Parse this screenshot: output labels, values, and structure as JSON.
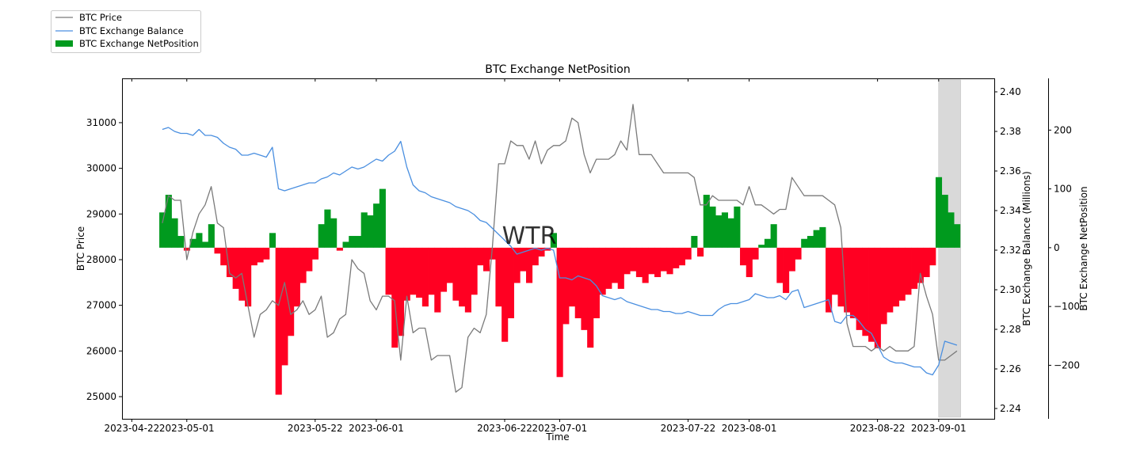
{
  "chart_data": {
    "type": "line",
    "title": "BTC Exchange NetPosition",
    "xlabel": "Time",
    "ylabel_left": "BTC Price",
    "ylabel_right": "BTC Exchange Balance (Millions)",
    "ylabel_right2": "BTC Exchange NetPosition",
    "start_date": "2023-04-27",
    "interval": "1 day",
    "x_range": [
      "2023-04-20",
      "2023-09-10"
    ],
    "x_ticks": [
      "2023-04-22",
      "2023-05-01",
      "2023-05-22",
      "2023-06-01",
      "2023-06-22",
      "2023-07-01",
      "2023-07-22",
      "2023-08-01",
      "2023-08-22",
      "2023-09-01"
    ],
    "ylim_price": [
      24515,
      31970
    ],
    "ylim_balance": [
      2.2348,
      2.4068
    ],
    "ylim_netposition": [
      -291,
      288
    ],
    "price_ticks": [
      "25000",
      "26000",
      "27000",
      "28000",
      "29000",
      "30000",
      "31000"
    ],
    "balance_ticks": [
      "2.24",
      "2.26",
      "2.28",
      "2.30",
      "2.32",
      "2.34",
      "2.36",
      "2.38",
      "2.40"
    ],
    "netposition_ticks": [
      "−200",
      "−100",
      "0",
      "100",
      "200"
    ],
    "highlight_span": [
      "2023-09-01",
      "2023-09-04"
    ],
    "legend_position": "top-left, outside plot",
    "watermark": "WTR",
    "colors": {
      "price": "#7a7a7a",
      "balance": "#4a8fe0",
      "positive": "#009a1e",
      "negative": "#ff0022",
      "span": "#d9d9d9"
    },
    "series": [
      {
        "name": "BTC Price",
        "axis": "left",
        "values": [
          28800,
          29400,
          29300,
          29300,
          28000,
          28600,
          29000,
          29200,
          29600,
          28800,
          28700,
          27700,
          27600,
          27700,
          27000,
          26300,
          26800,
          26900,
          27100,
          27000,
          27500,
          26800,
          26900,
          27100,
          26800,
          26900,
          27200,
          26300,
          26400,
          26700,
          26800,
          28000,
          27800,
          27700,
          27100,
          26900,
          27200,
          27200,
          27100,
          25800,
          27200,
          26400,
          26500,
          26500,
          25800,
          25900,
          25900,
          25900,
          25100,
          25200,
          26300,
          26500,
          26400,
          26800,
          28300,
          30100,
          30100,
          30600,
          30500,
          30500,
          30200,
          30600,
          30100,
          30400,
          30500,
          30500,
          30600,
          31100,
          31000,
          30300,
          29900,
          30200,
          30200,
          30200,
          30300,
          30600,
          30400,
          31400,
          30300,
          30300,
          30300,
          30100,
          29900,
          29900,
          29900,
          29900,
          29900,
          29800,
          29200,
          29200,
          29400,
          29300,
          29300,
          29300,
          29300,
          29200,
          29600,
          29200,
          29200,
          29100,
          29000,
          29100,
          29100,
          29800,
          29600,
          29400,
          29400,
          29400,
          29400,
          29300,
          29200,
          28700,
          26600,
          26100,
          26100,
          26100,
          26000,
          26100,
          26000,
          26100,
          26000,
          26000,
          26000,
          26100,
          27700,
          27200,
          26800,
          25800,
          25800,
          25900,
          26000
        ]
      },
      {
        "name": "BTC Exchange Balance",
        "axis": "right",
        "values": [
          2.381,
          2.382,
          2.38,
          2.379,
          2.379,
          2.378,
          2.381,
          2.378,
          2.378,
          2.377,
          2.374,
          2.372,
          2.371,
          2.368,
          2.368,
          2.369,
          2.368,
          2.367,
          2.372,
          2.351,
          2.35,
          2.351,
          2.352,
          2.353,
          2.354,
          2.354,
          2.356,
          2.357,
          2.359,
          2.358,
          2.36,
          2.362,
          2.361,
          2.362,
          2.364,
          2.366,
          2.365,
          2.368,
          2.37,
          2.375,
          2.362,
          2.353,
          2.35,
          2.349,
          2.347,
          2.346,
          2.345,
          2.344,
          2.342,
          2.341,
          2.34,
          2.338,
          2.335,
          2.334,
          2.331,
          2.328,
          2.325,
          2.322,
          2.318,
          2.319,
          2.32,
          2.321,
          2.32,
          2.321,
          2.32,
          2.306,
          2.306,
          2.305,
          2.307,
          2.306,
          2.305,
          2.302,
          2.297,
          2.296,
          2.295,
          2.296,
          2.294,
          2.293,
          2.292,
          2.291,
          2.29,
          2.29,
          2.289,
          2.289,
          2.288,
          2.288,
          2.289,
          2.288,
          2.287,
          2.287,
          2.287,
          2.29,
          2.292,
          2.293,
          2.293,
          2.294,
          2.295,
          2.298,
          2.297,
          2.296,
          2.296,
          2.297,
          2.295,
          2.299,
          2.3,
          2.291,
          2.292,
          2.293,
          2.294,
          2.295,
          2.284,
          2.283,
          2.287,
          2.287,
          2.284,
          2.28,
          2.278,
          2.272,
          2.266,
          2.264,
          2.263,
          2.263,
          2.262,
          2.261,
          2.261,
          2.258,
          2.257,
          2.262,
          2.274,
          2.273,
          2.272
        ]
      },
      {
        "name": "BTC Exchange NetPosition",
        "axis": "right2",
        "values": [
          60,
          90,
          50,
          20,
          -5,
          15,
          25,
          10,
          40,
          -10,
          -30,
          -50,
          -70,
          -90,
          -100,
          -30,
          -25,
          -20,
          25,
          -250,
          -200,
          -150,
          -100,
          -60,
          -40,
          -20,
          40,
          65,
          50,
          -5,
          10,
          20,
          20,
          60,
          55,
          75,
          100,
          -80,
          -170,
          -150,
          -90,
          -80,
          -85,
          -100,
          -80,
          -110,
          -75,
          -60,
          -90,
          -100,
          -110,
          -80,
          -30,
          -40,
          -20,
          -100,
          -160,
          -120,
          -60,
          -40,
          -60,
          -30,
          -15,
          -5,
          25,
          -220,
          -130,
          -100,
          -120,
          -140,
          -170,
          -120,
          -80,
          -70,
          -60,
          -70,
          -45,
          -40,
          -50,
          -60,
          -45,
          -50,
          -40,
          -45,
          -35,
          -30,
          -20,
          20,
          -15,
          90,
          70,
          55,
          60,
          50,
          70,
          -30,
          -50,
          -20,
          5,
          15,
          40,
          -60,
          -77,
          -40,
          -20,
          15,
          20,
          30,
          35,
          -110,
          -80,
          -100,
          -110,
          -120,
          -140,
          -150,
          -160,
          -171,
          -130,
          -110,
          -100,
          -90,
          -80,
          -70,
          -60,
          -50,
          -30,
          120,
          90,
          60,
          40
        ]
      }
    ]
  }
}
